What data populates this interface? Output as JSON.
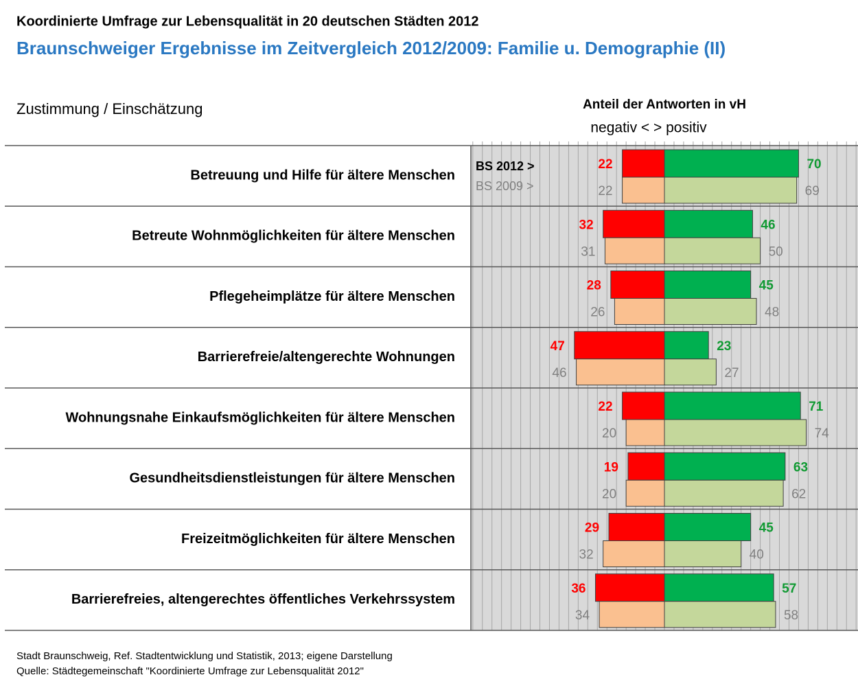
{
  "chart_data": {
    "type": "diverging_bar",
    "title": "Koordinierte Umfrage zur Lebensqualität in 20 deutschen Städten 2012",
    "subtitle": "Braunschweiger Ergebnisse im Zeitvergleich 2012/2009: Familie u. Demographie (II)",
    "y_label": "Zustimmung  / Einschätzung",
    "x_label": "Anteil der Antworten in vH",
    "x_sublabel": "negativ < > positiv",
    "categories": [
      "Betreuung und Hilfe für ältere Menschen",
      "Betreute Wohnmöglichkeiten für ältere Menschen",
      "Pflegeheimplätze für ältere Menschen",
      "Barrierefreie/altengerechte Wohnungen",
      "Wohnungsnahe Einkaufsmöglichkeiten für ältere Menschen",
      "Gesundheitsdienstleistungen für ältere Menschen",
      "Freizeitmöglichkeiten für ältere Menschen",
      "Barrierefreies, altengerechtes öffentliches Verkehrssystem"
    ],
    "series": [
      {
        "name": "BS 2012 >",
        "negative_color": "#ff0000",
        "positive_color": "#00b050",
        "negative_label_color": "#ff0000",
        "positive_label_color": "#119a33",
        "negative": [
          22,
          32,
          28,
          47,
          22,
          19,
          29,
          36
        ],
        "positive": [
          70,
          46,
          45,
          23,
          71,
          63,
          45,
          57
        ]
      },
      {
        "name": "BS 2009 >",
        "negative_color": "#fac090",
        "positive_color": "#c4d79b",
        "negative_label_color": "#808080",
        "positive_label_color": "#808080",
        "negative": [
          22,
          31,
          26,
          46,
          20,
          20,
          32,
          34
        ],
        "positive": [
          69,
          50,
          48,
          27,
          74,
          62,
          40,
          58
        ]
      }
    ],
    "xlim": [
      -101,
      101
    ],
    "xticks": [
      -100,
      -95,
      -90,
      -85,
      -80,
      -75,
      -70,
      -65,
      -60,
      -55,
      -50,
      -45,
      -40,
      -35,
      -30,
      -25,
      -20,
      -15,
      -10,
      -5,
      0,
      5,
      10,
      15,
      20,
      25,
      30,
      35,
      40,
      45,
      50,
      55,
      60,
      65,
      70,
      75,
      80,
      85,
      90,
      95,
      100
    ],
    "grid": true,
    "footnotes": [
      "Stadt Braunschweig, Ref. Stadtentwicklung und Statistik, 2013; eigene Darstellung",
      "Quelle: Städtegemeinschaft \"Koordinierte Umfrage zur Lebensqualität 2012\""
    ]
  }
}
